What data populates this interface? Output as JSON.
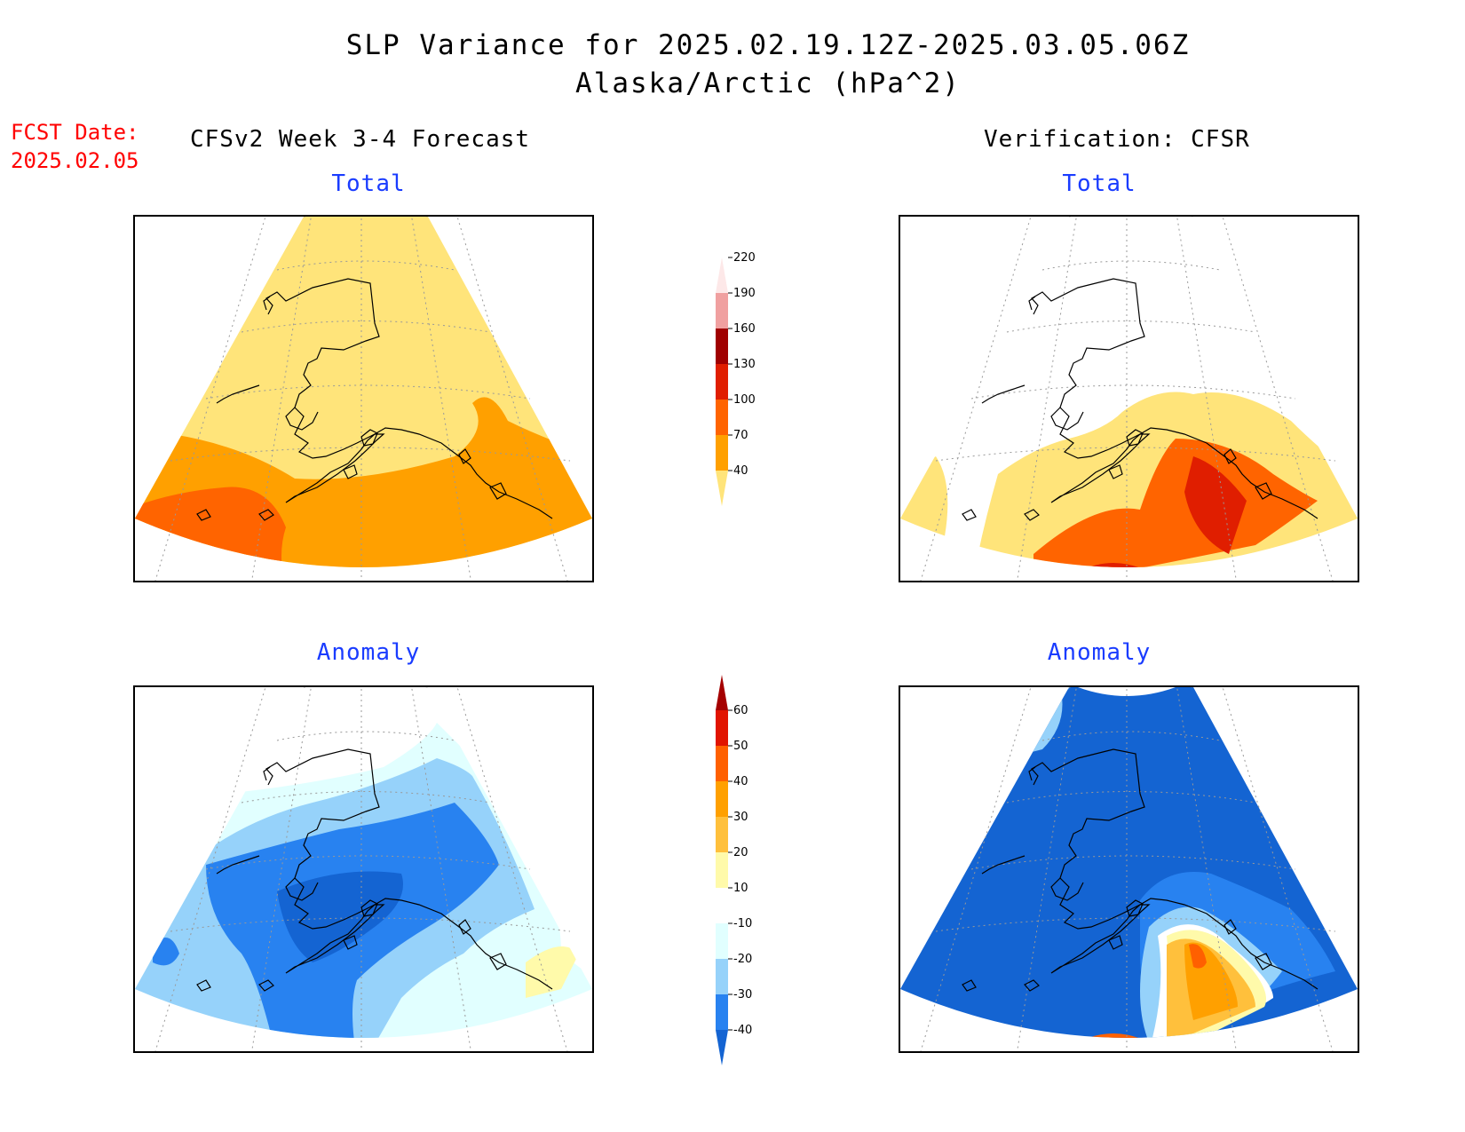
{
  "header": {
    "title_line1": "SLP Variance for 2025.02.19.12Z-2025.03.05.06Z",
    "title_line2": "Alaska/Arctic (hPa^2)",
    "fcst_label": "FCST Date:",
    "fcst_date": "2025.02.05"
  },
  "columns": {
    "left": "CFSv2 Week 3-4 Forecast",
    "right": "Verification: CFSR"
  },
  "panels": {
    "forecast_total": {
      "title": "Total"
    },
    "verification_total": {
      "title": "Total"
    },
    "forecast_anomaly": {
      "title": "Anomaly"
    },
    "verification_anomaly": {
      "title": "Anomaly"
    }
  },
  "colorbars": {
    "total": {
      "labels": [
        "40",
        "70",
        "100",
        "130",
        "160",
        "190",
        "220"
      ],
      "colors": [
        "#ffe47a",
        "#ffa000",
        "#ff6400",
        "#e01e00",
        "#a00000",
        "#f0a0a0",
        "#fde8e8"
      ]
    },
    "anomaly": {
      "labels": [
        "-40",
        "-30",
        "-20",
        "-10",
        "10",
        "20",
        "30",
        "40",
        "50",
        "60"
      ],
      "colors": [
        "#1464d2",
        "#2882f0",
        "#96d2fa",
        "#e1ffff",
        "#ffffff",
        "#fffaaa",
        "#ffc03c",
        "#ffa000",
        "#ff6000",
        "#e11400",
        "#a50000"
      ]
    }
  },
  "colors": {
    "fcst_text": "#ff0000",
    "panel_title": "#1a3cff",
    "yellow": "#ffe47a",
    "orange": "#ffa000",
    "dark_orange": "#ff6400",
    "red": "#e01e00",
    "dark_red": "#a00000",
    "blue_dark": "#1464d2",
    "blue": "#2882f0",
    "blue_light": "#96d2fa",
    "blue_pale": "#e1ffff"
  }
}
